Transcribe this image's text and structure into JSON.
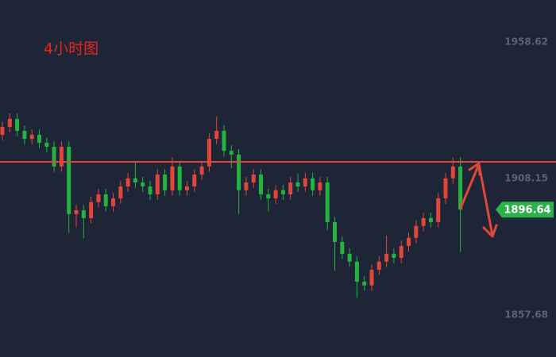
{
  "chart_data": {
    "type": "candlestick",
    "title": "4小时图",
    "open": [
      1924.3,
      1927.2,
      1930.2,
      1925.8,
      1922.8,
      1924.3,
      1921.4,
      1919.9,
      1912.6,
      1919.9,
      1895.0,
      1896.4,
      1893.5,
      1899.4,
      1902.3,
      1897.9,
      1900.8,
      1905.2,
      1908.2,
      1906.7,
      1905.2,
      1902.3,
      1909.6,
      1903.8,
      1912.6,
      1903.8,
      1905.2,
      1909.6,
      1912.6,
      1922.8,
      1925.8,
      1918.4,
      1917.0,
      1903.8,
      1906.7,
      1909.6,
      1902.3,
      1900.8,
      1903.8,
      1902.3,
      1906.7,
      1905.2,
      1908.2,
      1903.8,
      1906.7,
      1892.0,
      1884.7,
      1880.3,
      1877.4,
      1870.0,
      1868.6,
      1874.4,
      1877.4,
      1880.3,
      1878.8,
      1883.2,
      1886.2,
      1890.6,
      1893.5,
      1892.0,
      1900.8,
      1908.2,
      1912.6
    ],
    "high": [
      1929.2,
      1932.2,
      1932.2,
      1927.8,
      1926.3,
      1926.3,
      1923.4,
      1921.9,
      1921.9,
      1921.9,
      1898.4,
      1898.4,
      1901.4,
      1904.3,
      1904.3,
      1902.8,
      1907.2,
      1910.2,
      1914.0,
      1908.7,
      1907.2,
      1911.6,
      1911.6,
      1916.0,
      1914.6,
      1907.2,
      1911.6,
      1914.6,
      1924.8,
      1931.0,
      1927.8,
      1920.4,
      1919.0,
      1908.7,
      1911.6,
      1911.6,
      1904.3,
      1905.8,
      1905.8,
      1908.7,
      1910.0,
      1910.2,
      1910.2,
      1908.7,
      1908.7,
      1894.0,
      1886.7,
      1882.3,
      1879.4,
      1872.0,
      1876.4,
      1879.4,
      1887.0,
      1882.3,
      1885.2,
      1888.2,
      1892.6,
      1895.5,
      1895.5,
      1902.8,
      1910.2,
      1916.0,
      1916.0
    ],
    "low": [
      1922.3,
      1925.2,
      1923.8,
      1920.8,
      1920.8,
      1919.4,
      1917.9,
      1910.6,
      1910.6,
      1888.0,
      1890.0,
      1886.0,
      1891.5,
      1897.4,
      1895.9,
      1895.9,
      1898.8,
      1903.2,
      1904.7,
      1903.2,
      1900.3,
      1900.3,
      1901.8,
      1901.8,
      1901.8,
      1901.8,
      1903.2,
      1907.6,
      1910.6,
      1920.8,
      1916.4,
      1912.0,
      1895.0,
      1901.8,
      1904.7,
      1900.3,
      1896.0,
      1898.8,
      1900.3,
      1900.3,
      1903.2,
      1903.2,
      1901.8,
      1901.8,
      1889.0,
      1874.0,
      1878.3,
      1875.4,
      1864.0,
      1866.6,
      1866.6,
      1872.4,
      1875.4,
      1876.8,
      1876.8,
      1881.2,
      1884.2,
      1888.6,
      1890.0,
      1890.0,
      1898.8,
      1906.2,
      1881.0
    ],
    "close": [
      1927.2,
      1930.2,
      1925.8,
      1922.8,
      1924.3,
      1921.4,
      1919.9,
      1912.6,
      1919.9,
      1895.0,
      1896.4,
      1893.5,
      1899.4,
      1902.3,
      1897.9,
      1900.8,
      1905.2,
      1908.2,
      1906.7,
      1905.2,
      1902.3,
      1909.6,
      1903.8,
      1912.6,
      1903.8,
      1905.2,
      1909.6,
      1912.6,
      1922.8,
      1925.8,
      1918.4,
      1917.0,
      1903.8,
      1906.7,
      1909.6,
      1902.3,
      1900.8,
      1903.8,
      1902.3,
      1906.7,
      1905.2,
      1908.2,
      1903.8,
      1906.7,
      1892.0,
      1884.7,
      1880.3,
      1877.4,
      1870.0,
      1868.6,
      1874.4,
      1877.4,
      1880.3,
      1878.8,
      1883.2,
      1886.2,
      1890.6,
      1893.5,
      1892.0,
      1900.8,
      1908.2,
      1912.6,
      1896.64
    ],
    "up_color": "#e0473a",
    "down_color": "#23b33f",
    "level": 1914.3,
    "level_color": "#e0473a",
    "last_color": "#2db14b",
    "ylim": [
      1842.13,
      1974.17
    ],
    "yticks": [
      1958.62,
      1908.15,
      1857.68
    ]
  }
}
